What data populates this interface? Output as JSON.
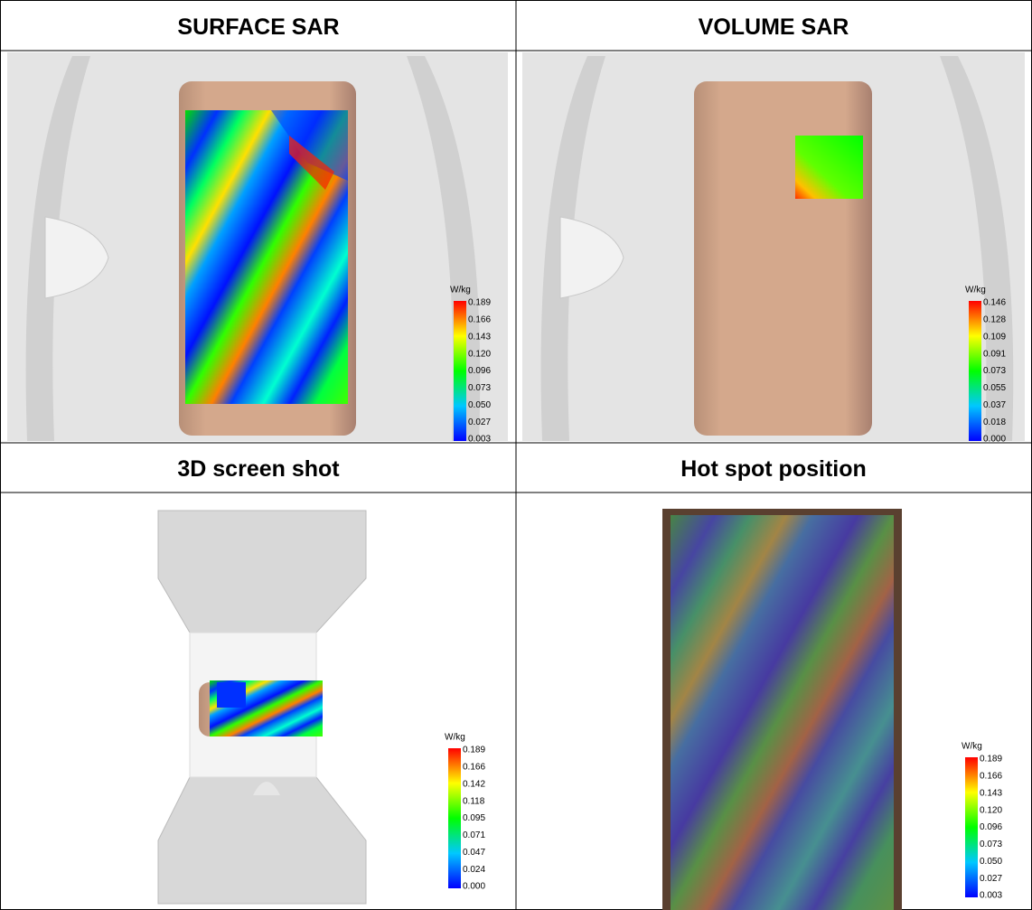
{
  "cells": [
    {
      "title": "SURFACE SAR",
      "legend": {
        "unit": "W/kg",
        "labels": [
          "0.189",
          "0.166",
          "0.143",
          "0.120",
          "0.096",
          "0.073",
          "0.050",
          "0.027",
          "0.003"
        ]
      }
    },
    {
      "title": "VOLUME SAR",
      "legend": {
        "unit": "W/kg",
        "labels": [
          "0.146",
          "0.128",
          "0.109",
          "0.091",
          "0.073",
          "0.055",
          "0.037",
          "0.018",
          "0.000"
        ]
      }
    },
    {
      "title": "3D screen shot",
      "legend": {
        "unit": "W/kg",
        "labels": [
          "0.189",
          "0.166",
          "0.142",
          "0.118",
          "0.095",
          "0.071",
          "0.047",
          "0.024",
          "0.000"
        ]
      }
    },
    {
      "title": "Hot spot position",
      "legend": {
        "unit": "W/kg",
        "labels": [
          "0.189",
          "0.166",
          "0.143",
          "0.120",
          "0.096",
          "0.073",
          "0.050",
          "0.027",
          "0.003"
        ]
      }
    }
  ]
}
